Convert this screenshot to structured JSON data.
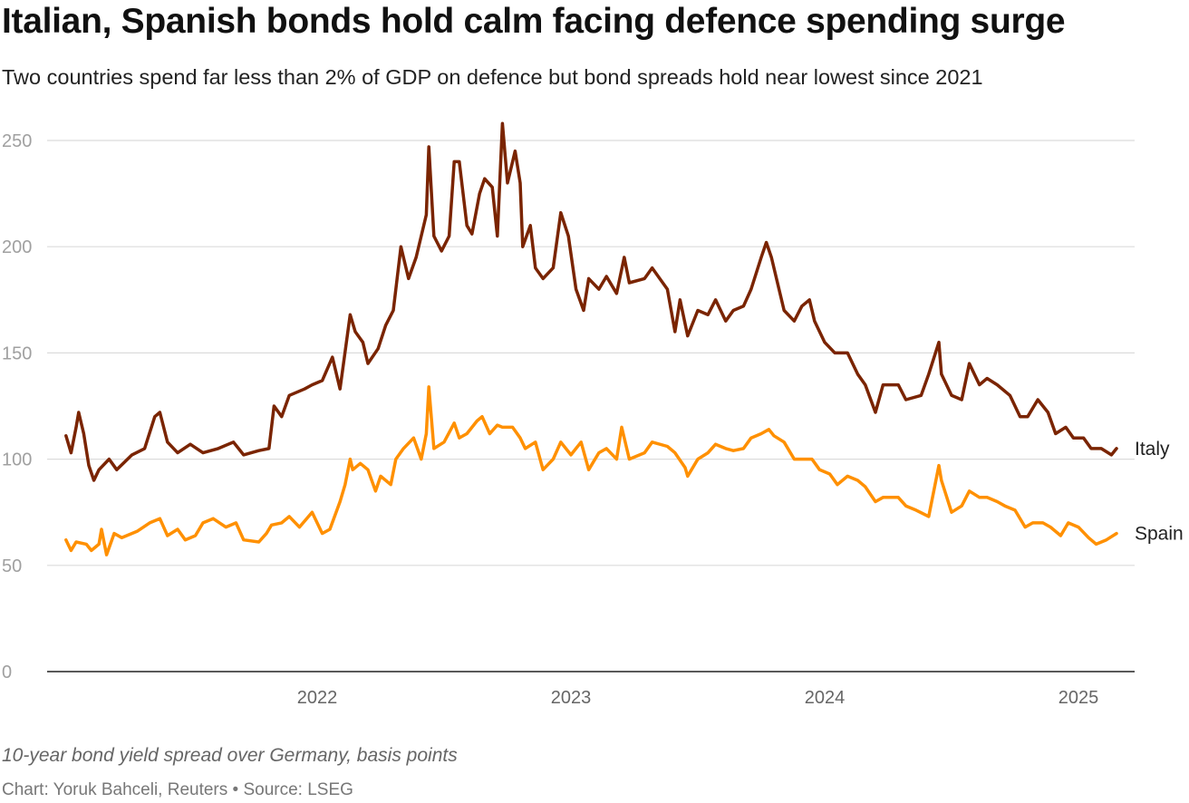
{
  "title": "Italian, Spanish bonds hold calm facing defence spending surge",
  "subtitle": "Two countries spend far less than 2% of GDP on defence but bond spreads hold near lowest since 2021",
  "note": "10-year bond yield spread over Germany, basis points",
  "source": "Chart: Yoruk Bahceli, Reuters • Source: LSEG",
  "chart_data": {
    "type": "line",
    "xlabel": "",
    "ylabel": "10-year bond yield spread over Germany, basis points",
    "ylim": [
      0,
      250
    ],
    "xlim": [
      2021.0,
      2025.15
    ],
    "grid": true,
    "legend": "inline-right",
    "y_ticks": [
      "0",
      "50",
      "100",
      "150",
      "200",
      "250"
    ],
    "y_tick_values": [
      0,
      50,
      100,
      150,
      200,
      250
    ],
    "x_ticks": [
      "2022",
      "2023",
      "2024",
      "2025"
    ],
    "x_tick_values": [
      2022,
      2023,
      2024,
      2025
    ],
    "series": [
      {
        "name": "Italy",
        "color": "#7a2400",
        "points": [
          [
            2021.01,
            111
          ],
          [
            2021.03,
            103
          ],
          [
            2021.05,
            115
          ],
          [
            2021.06,
            122
          ],
          [
            2021.08,
            112
          ],
          [
            2021.1,
            97
          ],
          [
            2021.12,
            90
          ],
          [
            2021.14,
            95
          ],
          [
            2021.18,
            100
          ],
          [
            2021.21,
            95
          ],
          [
            2021.27,
            102
          ],
          [
            2021.32,
            105
          ],
          [
            2021.36,
            120
          ],
          [
            2021.38,
            122
          ],
          [
            2021.41,
            108
          ],
          [
            2021.45,
            103
          ],
          [
            2021.5,
            107
          ],
          [
            2021.55,
            103
          ],
          [
            2021.61,
            105
          ],
          [
            2021.67,
            108
          ],
          [
            2021.71,
            102
          ],
          [
            2021.77,
            104
          ],
          [
            2021.81,
            105
          ],
          [
            2021.83,
            125
          ],
          [
            2021.86,
            120
          ],
          [
            2021.89,
            130
          ],
          [
            2021.95,
            133
          ],
          [
            2021.98,
            135
          ],
          [
            2022.02,
            137
          ],
          [
            2022.06,
            148
          ],
          [
            2022.09,
            133
          ],
          [
            2022.13,
            168
          ],
          [
            2022.15,
            160
          ],
          [
            2022.18,
            155
          ],
          [
            2022.2,
            145
          ],
          [
            2022.24,
            152
          ],
          [
            2022.27,
            163
          ],
          [
            2022.3,
            170
          ],
          [
            2022.33,
            200
          ],
          [
            2022.36,
            185
          ],
          [
            2022.39,
            195
          ],
          [
            2022.41,
            205
          ],
          [
            2022.43,
            215
          ],
          [
            2022.44,
            247
          ],
          [
            2022.46,
            205
          ],
          [
            2022.49,
            198
          ],
          [
            2022.52,
            205
          ],
          [
            2022.54,
            240
          ],
          [
            2022.56,
            240
          ],
          [
            2022.59,
            210
          ],
          [
            2022.61,
            206
          ],
          [
            2022.64,
            225
          ],
          [
            2022.66,
            232
          ],
          [
            2022.69,
            228
          ],
          [
            2022.71,
            205
          ],
          [
            2022.73,
            258
          ],
          [
            2022.75,
            230
          ],
          [
            2022.78,
            245
          ],
          [
            2022.8,
            230
          ],
          [
            2022.81,
            200
          ],
          [
            2022.84,
            210
          ],
          [
            2022.86,
            190
          ],
          [
            2022.89,
            185
          ],
          [
            2022.93,
            190
          ],
          [
            2022.96,
            216
          ],
          [
            2022.99,
            205
          ],
          [
            2023.02,
            180
          ],
          [
            2023.05,
            170
          ],
          [
            2023.07,
            185
          ],
          [
            2023.11,
            180
          ],
          [
            2023.14,
            186
          ],
          [
            2023.18,
            178
          ],
          [
            2023.21,
            195
          ],
          [
            2023.23,
            183
          ],
          [
            2023.29,
            185
          ],
          [
            2023.32,
            190
          ],
          [
            2023.38,
            180
          ],
          [
            2023.41,
            160
          ],
          [
            2023.43,
            175
          ],
          [
            2023.46,
            158
          ],
          [
            2023.5,
            170
          ],
          [
            2023.54,
            168
          ],
          [
            2023.57,
            175
          ],
          [
            2023.61,
            165
          ],
          [
            2023.64,
            170
          ],
          [
            2023.68,
            172
          ],
          [
            2023.71,
            180
          ],
          [
            2023.75,
            195
          ],
          [
            2023.77,
            202
          ],
          [
            2023.79,
            195
          ],
          [
            2023.81,
            185
          ],
          [
            2023.84,
            170
          ],
          [
            2023.88,
            165
          ],
          [
            2023.91,
            172
          ],
          [
            2023.94,
            175
          ],
          [
            2023.96,
            165
          ],
          [
            2024.0,
            155
          ],
          [
            2024.04,
            150
          ],
          [
            2024.09,
            150
          ],
          [
            2024.13,
            140
          ],
          [
            2024.16,
            135
          ],
          [
            2024.2,
            122
          ],
          [
            2024.23,
            135
          ],
          [
            2024.29,
            135
          ],
          [
            2024.32,
            128
          ],
          [
            2024.38,
            130
          ],
          [
            2024.41,
            140
          ],
          [
            2024.45,
            155
          ],
          [
            2024.46,
            140
          ],
          [
            2024.5,
            130
          ],
          [
            2024.54,
            128
          ],
          [
            2024.57,
            145
          ],
          [
            2024.61,
            135
          ],
          [
            2024.64,
            138
          ],
          [
            2024.68,
            135
          ],
          [
            2024.73,
            130
          ],
          [
            2024.77,
            120
          ],
          [
            2024.8,
            120
          ],
          [
            2024.84,
            128
          ],
          [
            2024.88,
            122
          ],
          [
            2024.91,
            112
          ],
          [
            2024.95,
            115
          ],
          [
            2024.98,
            110
          ],
          [
            2025.02,
            110
          ],
          [
            2025.05,
            105
          ],
          [
            2025.09,
            105
          ],
          [
            2025.13,
            102
          ],
          [
            2025.15,
            105
          ]
        ]
      },
      {
        "name": "Spain",
        "color": "#ff9000",
        "points": [
          [
            2021.01,
            62
          ],
          [
            2021.03,
            57
          ],
          [
            2021.05,
            61
          ],
          [
            2021.09,
            60
          ],
          [
            2021.11,
            57
          ],
          [
            2021.14,
            60
          ],
          [
            2021.15,
            67
          ],
          [
            2021.17,
            55
          ],
          [
            2021.2,
            65
          ],
          [
            2021.23,
            63
          ],
          [
            2021.29,
            66
          ],
          [
            2021.34,
            70
          ],
          [
            2021.38,
            72
          ],
          [
            2021.41,
            64
          ],
          [
            2021.45,
            67
          ],
          [
            2021.48,
            62
          ],
          [
            2021.52,
            64
          ],
          [
            2021.55,
            70
          ],
          [
            2021.59,
            72
          ],
          [
            2021.64,
            68
          ],
          [
            2021.68,
            70
          ],
          [
            2021.71,
            62
          ],
          [
            2021.77,
            61
          ],
          [
            2021.8,
            65
          ],
          [
            2021.82,
            69
          ],
          [
            2021.86,
            70
          ],
          [
            2021.89,
            73
          ],
          [
            2021.93,
            68
          ],
          [
            2021.98,
            75
          ],
          [
            2022.02,
            65
          ],
          [
            2022.05,
            67
          ],
          [
            2022.09,
            80
          ],
          [
            2022.11,
            88
          ],
          [
            2022.13,
            100
          ],
          [
            2022.14,
            95
          ],
          [
            2022.17,
            98
          ],
          [
            2022.2,
            95
          ],
          [
            2022.23,
            85
          ],
          [
            2022.25,
            92
          ],
          [
            2022.29,
            88
          ],
          [
            2022.31,
            100
          ],
          [
            2022.34,
            105
          ],
          [
            2022.38,
            110
          ],
          [
            2022.41,
            100
          ],
          [
            2022.43,
            112
          ],
          [
            2022.44,
            134
          ],
          [
            2022.46,
            105
          ],
          [
            2022.5,
            108
          ],
          [
            2022.54,
            117
          ],
          [
            2022.56,
            110
          ],
          [
            2022.59,
            112
          ],
          [
            2022.63,
            118
          ],
          [
            2022.65,
            120
          ],
          [
            2022.68,
            112
          ],
          [
            2022.71,
            116
          ],
          [
            2022.73,
            115
          ],
          [
            2022.77,
            115
          ],
          [
            2022.8,
            110
          ],
          [
            2022.82,
            105
          ],
          [
            2022.86,
            108
          ],
          [
            2022.89,
            95
          ],
          [
            2022.93,
            100
          ],
          [
            2022.96,
            108
          ],
          [
            2023.0,
            102
          ],
          [
            2023.04,
            108
          ],
          [
            2023.07,
            95
          ],
          [
            2023.11,
            103
          ],
          [
            2023.14,
            105
          ],
          [
            2023.18,
            100
          ],
          [
            2023.2,
            115
          ],
          [
            2023.23,
            100
          ],
          [
            2023.29,
            103
          ],
          [
            2023.32,
            108
          ],
          [
            2023.38,
            106
          ],
          [
            2023.41,
            103
          ],
          [
            2023.45,
            96
          ],
          [
            2023.46,
            92
          ],
          [
            2023.5,
            100
          ],
          [
            2023.54,
            103
          ],
          [
            2023.57,
            107
          ],
          [
            2023.61,
            105
          ],
          [
            2023.64,
            104
          ],
          [
            2023.68,
            105
          ],
          [
            2023.71,
            110
          ],
          [
            2023.75,
            112
          ],
          [
            2023.78,
            114
          ],
          [
            2023.8,
            111
          ],
          [
            2023.84,
            108
          ],
          [
            2023.88,
            100
          ],
          [
            2023.91,
            100
          ],
          [
            2023.95,
            100
          ],
          [
            2023.98,
            95
          ],
          [
            2024.02,
            93
          ],
          [
            2024.05,
            88
          ],
          [
            2024.09,
            92
          ],
          [
            2024.13,
            90
          ],
          [
            2024.16,
            87
          ],
          [
            2024.2,
            80
          ],
          [
            2024.23,
            82
          ],
          [
            2024.29,
            82
          ],
          [
            2024.32,
            78
          ],
          [
            2024.36,
            76
          ],
          [
            2024.41,
            73
          ],
          [
            2024.45,
            97
          ],
          [
            2024.46,
            90
          ],
          [
            2024.5,
            75
          ],
          [
            2024.54,
            78
          ],
          [
            2024.57,
            85
          ],
          [
            2024.61,
            82
          ],
          [
            2024.64,
            82
          ],
          [
            2024.68,
            80
          ],
          [
            2024.71,
            78
          ],
          [
            2024.75,
            76
          ],
          [
            2024.79,
            68
          ],
          [
            2024.82,
            70
          ],
          [
            2024.86,
            70
          ],
          [
            2024.89,
            68
          ],
          [
            2024.93,
            64
          ],
          [
            2024.96,
            70
          ],
          [
            2025.0,
            68
          ],
          [
            2025.04,
            63
          ],
          [
            2025.07,
            60
          ],
          [
            2025.11,
            62
          ],
          [
            2025.15,
            65
          ]
        ]
      }
    ]
  }
}
